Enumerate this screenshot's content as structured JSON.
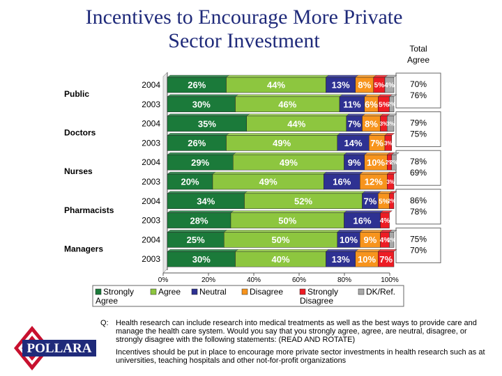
{
  "title_line1": "Incentives to Encourage More Private",
  "title_line2": "Sector Investment",
  "total_header": [
    "Total",
    "Agree"
  ],
  "colors": {
    "Strongly Agree": "#1b7a3a",
    "Agree": "#8dc63f",
    "Neutral": "#2e3192",
    "Disagree": "#f7941d",
    "Strongly Disagree": "#ed1c24",
    "DK/Ref.": "#a8a8a8",
    "title": "#1f2a7a"
  },
  "chart_data": {
    "type": "bar",
    "orientation": "horizontal",
    "stacked": true,
    "xlim": [
      0,
      100
    ],
    "xticks": [
      "0%",
      "20%",
      "40%",
      "60%",
      "80%",
      "100%"
    ],
    "groups": [
      "Public",
      "Doctors",
      "Nurses",
      "Pharmacists",
      "Managers"
    ],
    "categories": [
      "2004",
      "2003",
      "2004",
      "2003",
      "2004",
      "2003",
      "2004",
      "2003",
      "2004",
      "2003"
    ],
    "series": [
      {
        "name": "Strongly Agree",
        "values": [
          26,
          30,
          35,
          26,
          29,
          20,
          34,
          28,
          25,
          30
        ]
      },
      {
        "name": "Agree",
        "values": [
          44,
          46,
          44,
          49,
          49,
          49,
          52,
          50,
          50,
          40
        ]
      },
      {
        "name": "Neutral",
        "values": [
          13,
          11,
          7,
          14,
          9,
          16,
          7,
          16,
          10,
          13
        ]
      },
      {
        "name": "Disagree",
        "values": [
          8,
          6,
          8,
          7,
          10,
          12,
          5,
          0,
          9,
          10
        ]
      },
      {
        "name": "Strongly Disagree",
        "values": [
          5,
          5,
          3,
          3,
          2,
          3,
          2,
          4,
          4,
          7
        ]
      },
      {
        "name": "DK/Ref.",
        "values": [
          4,
          2,
          3,
          0,
          2,
          0,
          0,
          0,
          2,
          0
        ]
      }
    ],
    "total_agree": [
      [
        "70%",
        "76%"
      ],
      [
        "79%",
        "75%"
      ],
      [
        "78%",
        "69%"
      ],
      [
        "86%",
        "78%"
      ],
      [
        "75%",
        "70%"
      ]
    ],
    "legend": [
      "Strongly Agree",
      "Agree",
      "Neutral",
      "Disagree",
      "Strongly Disagree",
      "DK/Ref."
    ],
    "legend_position": "bottom"
  },
  "question_label": "Q:",
  "question_text": "Health research can include research into medical treatments as well as the best ways to provide care and manage the health care system. Would you say that you strongly agree, agree, are neutral, disagree, or strongly disagree with the following statements: (READ AND ROTATE)",
  "statement_text": "Incentives should be put in place to encourage more private sector investments in health research such as at universities, teaching hospitals and other not-for-profit organizations",
  "logo_text": "POLLARA"
}
